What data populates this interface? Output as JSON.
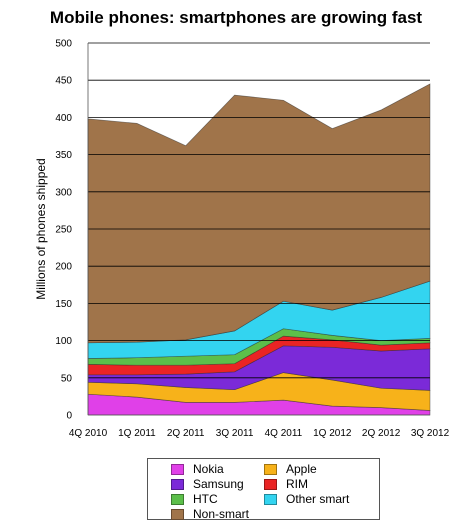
{
  "chart_data": {
    "type": "area",
    "stacked": true,
    "title": "Mobile phones: smartphones are growing fast",
    "ylabel": "Millions of phones shipped",
    "xlabel": "",
    "categories": [
      "4Q 2010",
      "1Q 2011",
      "2Q 2011",
      "3Q 2011",
      "4Q 2011",
      "1Q 2012",
      "2Q 2012",
      "3Q 2012"
    ],
    "ylim": [
      0,
      500
    ],
    "yticks": [
      0,
      50,
      100,
      150,
      200,
      250,
      300,
      350,
      400,
      450,
      500
    ],
    "grid": "horizontal",
    "legend_position": "bottom",
    "series": [
      {
        "name": "Nokia",
        "color": "#e040e8",
        "values": [
          28,
          24,
          17,
          17,
          20,
          12,
          10,
          6
        ]
      },
      {
        "name": "Apple",
        "color": "#f7b21a",
        "values": [
          16,
          18,
          20,
          17,
          37,
          35,
          26,
          27
        ]
      },
      {
        "name": "Samsung",
        "color": "#7b2ad8",
        "values": [
          10,
          12,
          18,
          24,
          36,
          44,
          50,
          56
        ]
      },
      {
        "name": "RIM",
        "color": "#ea2424",
        "values": [
          14,
          13,
          12,
          11,
          13,
          10,
          8,
          8
        ]
      },
      {
        "name": "HTC",
        "color": "#5cbf4a",
        "values": [
          8,
          10,
          12,
          12,
          10,
          6,
          6,
          6
        ]
      },
      {
        "name": "Other smart",
        "color": "#33d4f0",
        "values": [
          21,
          21,
          22,
          32,
          37,
          34,
          58,
          77
        ]
      },
      {
        "name": "Non-smart",
        "color": "#a0744a",
        "values": [
          301,
          294,
          261,
          317,
          270,
          244,
          252,
          265
        ]
      }
    ]
  },
  "legend": {
    "items": [
      {
        "label": "Nokia",
        "color": "#e040e8"
      },
      {
        "label": "Apple",
        "color": "#f7b21a"
      },
      {
        "label": "Samsung",
        "color": "#7b2ad8"
      },
      {
        "label": "RIM",
        "color": "#ea2424"
      },
      {
        "label": "HTC",
        "color": "#5cbf4a"
      },
      {
        "label": "Other smart",
        "color": "#33d4f0"
      },
      {
        "label": "Non-smart",
        "color": "#a0744a"
      }
    ]
  }
}
